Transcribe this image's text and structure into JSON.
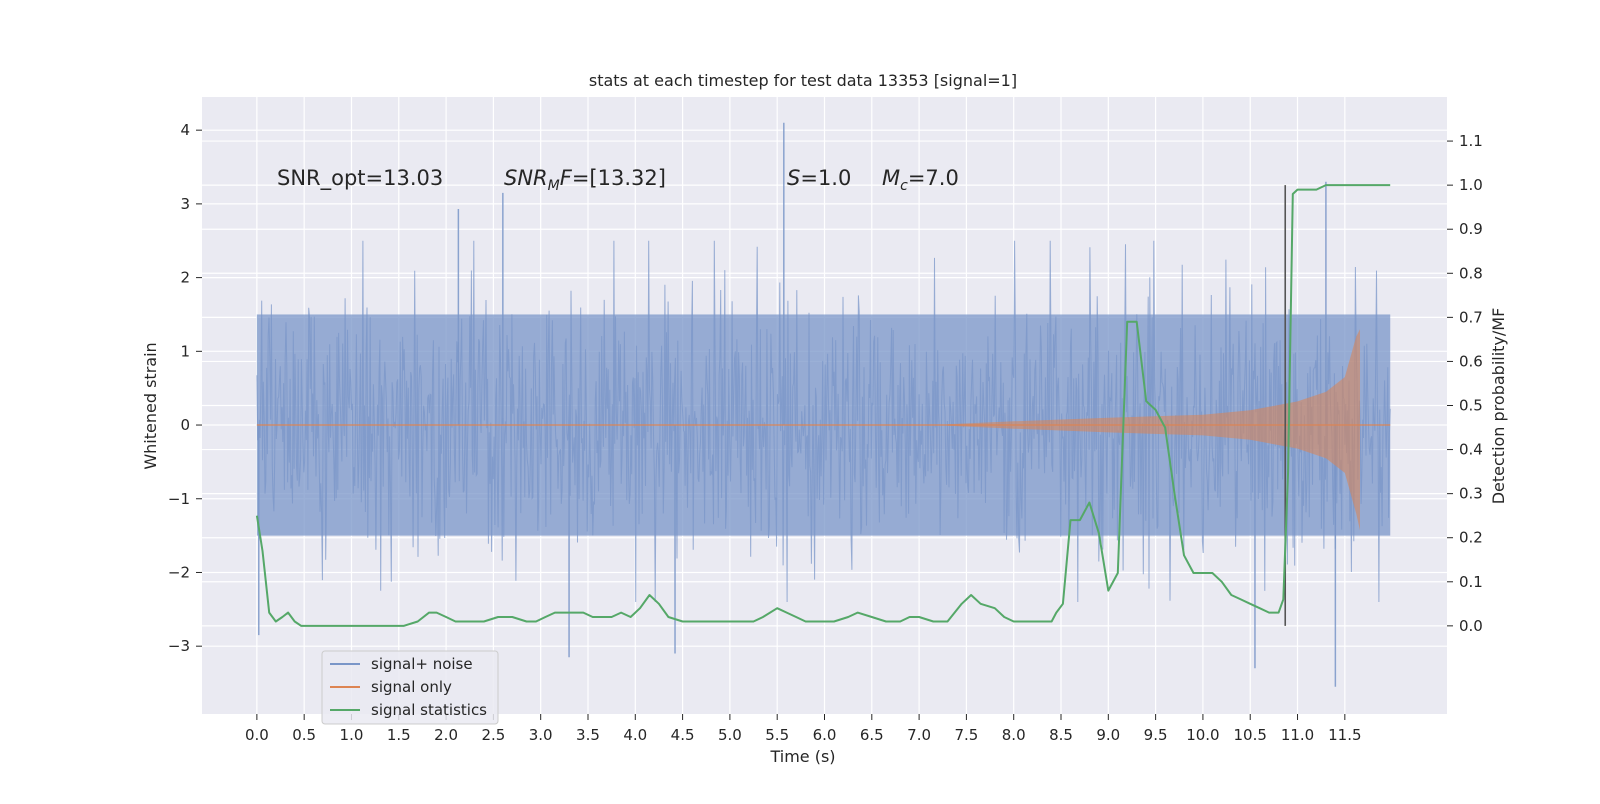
{
  "chart_data": {
    "type": "line",
    "title": "stats at each timestep for test data 13353 [signal=1]",
    "xlabel": "Time (s)",
    "ylabel_left": "Whitened strain",
    "ylabel_right": "Detection probability/MF",
    "xlim": [
      -0.58,
      12.58
    ],
    "ylim_left": [
      -3.92,
      4.45
    ],
    "ylim_right": [
      -0.2,
      1.2
    ],
    "x_ticks": [
      "0.0",
      "0.5",
      "1.0",
      "1.5",
      "2.0",
      "2.5",
      "3.0",
      "3.5",
      "4.0",
      "4.5",
      "5.0",
      "5.5",
      "6.0",
      "6.5",
      "7.0",
      "7.5",
      "8.0",
      "8.5",
      "9.0",
      "9.5",
      "10.0",
      "10.5",
      "11.0",
      "11.5"
    ],
    "y_ticks_left": [
      "4",
      "3",
      "2",
      "1",
      "0",
      "−1",
      "−2",
      "−3"
    ],
    "y_ticks_right": [
      "1.1",
      "1.0",
      "0.9",
      "0.8",
      "0.7",
      "0.6",
      "0.5",
      "0.4",
      "0.3",
      "0.2",
      "0.1",
      "0.0"
    ],
    "grid": true,
    "legend_position": "lower-left",
    "annotations": {
      "snr_opt": "SNR_opt=13.03",
      "snr_mf": "=[13.32]",
      "snr_mf_symbol": "SNR",
      "snr_mf_sub": "M",
      "snr_mf_tail": "F",
      "s_symbol": "S",
      "s_value": "=1.0",
      "mc_symbol": "M",
      "mc_sub": "c",
      "mc_value": "=7.0"
    },
    "vertical_marker": {
      "x": 10.87,
      "label": ""
    },
    "series": [
      {
        "name": "signal+ noise",
        "axis": "left",
        "color": "#7a96c8",
        "kind": "noise_band",
        "x_range": [
          0.0,
          11.98
        ],
        "core_band": [
          -1.5,
          1.5
        ],
        "typical_peaks": [
          -2.2,
          2.3
        ],
        "notable_spikes": [
          {
            "x": 0.02,
            "y": -2.85
          },
          {
            "x": 2.6,
            "y": 3.15
          },
          {
            "x": 3.3,
            "y": -3.15
          },
          {
            "x": 4.42,
            "y": -3.1
          },
          {
            "x": 5.57,
            "y": 4.1
          },
          {
            "x": 10.55,
            "y": -3.3
          },
          {
            "x": 11.4,
            "y": -3.55
          },
          {
            "x": 11.3,
            "y": 3.3
          },
          {
            "x": 2.13,
            "y": 2.93
          }
        ]
      },
      {
        "name": "signal only",
        "axis": "left",
        "color": "#dd8452",
        "kind": "chirp_envelope",
        "x_range": [
          0.0,
          11.98
        ],
        "envelope": [
          {
            "x": 7.3,
            "amp": 0.01
          },
          {
            "x": 8.0,
            "amp": 0.05
          },
          {
            "x": 9.0,
            "amp": 0.1
          },
          {
            "x": 10.0,
            "amp": 0.14
          },
          {
            "x": 10.5,
            "amp": 0.2
          },
          {
            "x": 11.0,
            "amp": 0.32
          },
          {
            "x": 11.3,
            "amp": 0.45
          },
          {
            "x": 11.5,
            "amp": 0.65
          },
          {
            "x": 11.62,
            "amp": 1.2
          },
          {
            "x": 11.66,
            "amp": 1.3
          }
        ]
      },
      {
        "name": "signal statistics",
        "axis": "right",
        "color": "#55a868",
        "kind": "line",
        "x": [
          0.0,
          0.06,
          0.13,
          0.2,
          0.27,
          0.33,
          0.4,
          0.47,
          0.55,
          0.7,
          0.85,
          1.0,
          1.2,
          1.4,
          1.55,
          1.7,
          1.82,
          1.9,
          2.0,
          2.1,
          2.25,
          2.4,
          2.55,
          2.62,
          2.7,
          2.85,
          2.95,
          3.05,
          3.15,
          3.3,
          3.45,
          3.55,
          3.65,
          3.75,
          3.85,
          3.95,
          4.05,
          4.15,
          4.25,
          4.35,
          4.5,
          4.7,
          4.85,
          5.0,
          5.1,
          5.25,
          5.35,
          5.5,
          5.6,
          5.7,
          5.8,
          5.95,
          6.1,
          6.25,
          6.35,
          6.5,
          6.65,
          6.8,
          6.9,
          7.0,
          7.15,
          7.3,
          7.45,
          7.55,
          7.65,
          7.8,
          7.9,
          8.0,
          8.1,
          8.2,
          8.3,
          8.4,
          8.45,
          8.52,
          8.6,
          8.7,
          8.8,
          8.9,
          9.0,
          9.1,
          9.2,
          9.3,
          9.4,
          9.5,
          9.6,
          9.7,
          9.8,
          9.9,
          10.0,
          10.1,
          10.2,
          10.3,
          10.4,
          10.5,
          10.6,
          10.7,
          10.8,
          10.85,
          10.9,
          10.95,
          11.0,
          11.1,
          11.2,
          11.3,
          11.4,
          11.5,
          11.6,
          11.7,
          11.8,
          11.9,
          11.98
        ],
        "y": [
          0.25,
          0.17,
          0.03,
          0.01,
          0.02,
          0.03,
          0.01,
          0.0,
          0.0,
          0.0,
          0.0,
          0.0,
          0.0,
          0.0,
          0.0,
          0.01,
          0.03,
          0.03,
          0.02,
          0.01,
          0.01,
          0.01,
          0.02,
          0.02,
          0.02,
          0.01,
          0.01,
          0.02,
          0.03,
          0.03,
          0.03,
          0.02,
          0.02,
          0.02,
          0.03,
          0.02,
          0.04,
          0.07,
          0.05,
          0.02,
          0.01,
          0.01,
          0.01,
          0.01,
          0.01,
          0.01,
          0.02,
          0.04,
          0.03,
          0.02,
          0.01,
          0.01,
          0.01,
          0.02,
          0.03,
          0.02,
          0.01,
          0.01,
          0.02,
          0.02,
          0.01,
          0.01,
          0.05,
          0.07,
          0.05,
          0.04,
          0.02,
          0.01,
          0.01,
          0.01,
          0.01,
          0.01,
          0.03,
          0.05,
          0.24,
          0.24,
          0.28,
          0.21,
          0.08,
          0.12,
          0.69,
          0.69,
          0.51,
          0.49,
          0.45,
          0.3,
          0.16,
          0.12,
          0.12,
          0.12,
          0.1,
          0.07,
          0.06,
          0.05,
          0.04,
          0.03,
          0.03,
          0.06,
          0.35,
          0.98,
          0.99,
          0.99,
          0.99,
          1.0,
          1.0,
          1.0,
          1.0,
          1.0,
          1.0,
          1.0,
          1.0
        ]
      }
    ]
  }
}
